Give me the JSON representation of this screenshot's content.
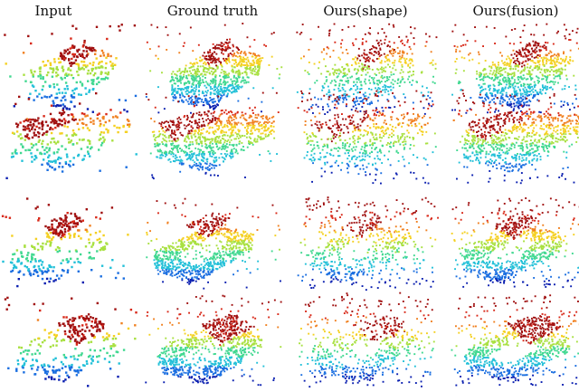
{
  "headers": [
    "Input",
    "Ground truth",
    "Ours(shape)",
    "Ours(fusion)"
  ],
  "colormap": [
    "#0a1fb0",
    "#1a6ee0",
    "#22c0d8",
    "#40d890",
    "#a8e040",
    "#f4d020",
    "#f08020",
    "#d82818",
    "#a01010"
  ],
  "rows": 4,
  "columns": 4
}
